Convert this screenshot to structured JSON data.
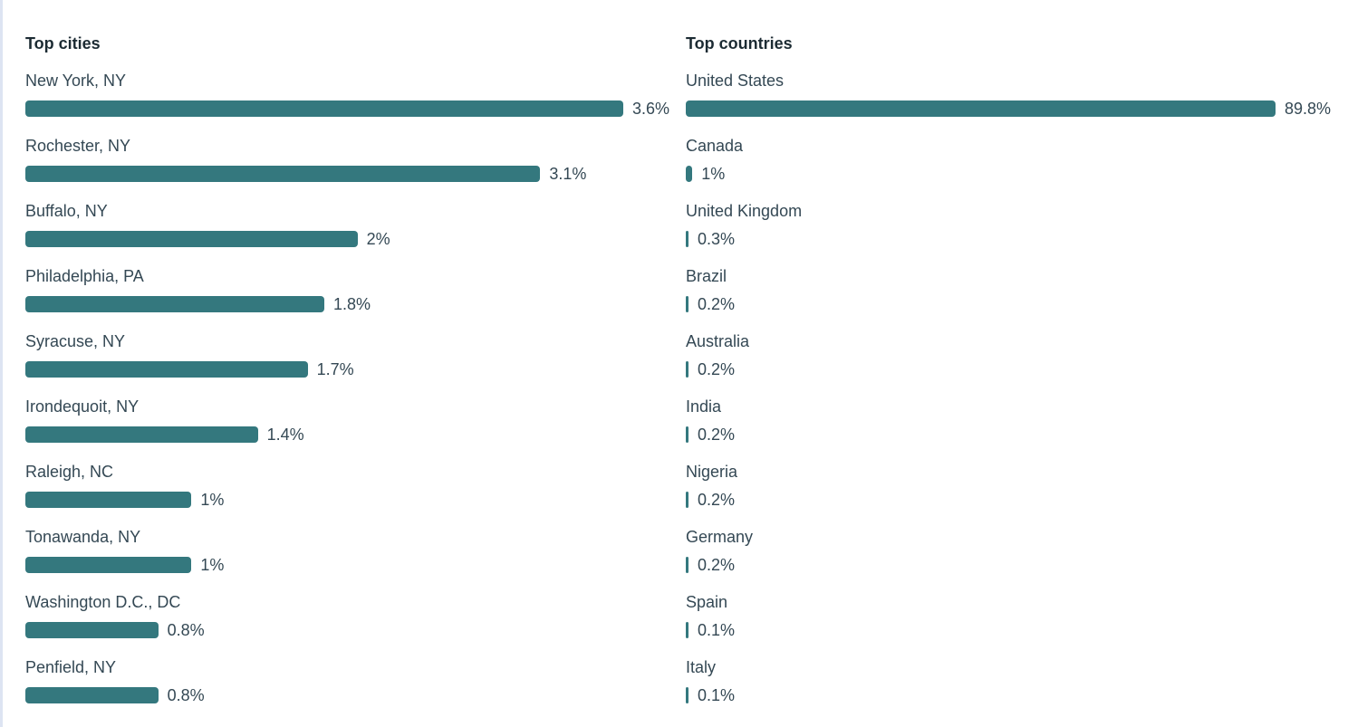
{
  "colors": {
    "bar": "#34787e",
    "heading": "#1c2b33",
    "text": "#344854",
    "edge_strip": "#dde4f2"
  },
  "panels": [
    {
      "header": "Top cities",
      "items": [
        {
          "label": "New York, NY",
          "value": 3.6,
          "value_label": "3.6%"
        },
        {
          "label": "Rochester, NY",
          "value": 3.1,
          "value_label": "3.1%"
        },
        {
          "label": "Buffalo, NY",
          "value": 2,
          "value_label": "2%"
        },
        {
          "label": "Philadelphia, PA",
          "value": 1.8,
          "value_label": "1.8%"
        },
        {
          "label": "Syracuse, NY",
          "value": 1.7,
          "value_label": "1.7%"
        },
        {
          "label": "Irondequoit, NY",
          "value": 1.4,
          "value_label": "1.4%"
        },
        {
          "label": "Raleigh, NC",
          "value": 1,
          "value_label": "1%"
        },
        {
          "label": "Tonawanda, NY",
          "value": 1,
          "value_label": "1%"
        },
        {
          "label": "Washington D.C., DC",
          "value": 0.8,
          "value_label": "0.8%"
        },
        {
          "label": "Penfield, NY",
          "value": 0.8,
          "value_label": "0.8%"
        }
      ]
    },
    {
      "header": "Top countries",
      "items": [
        {
          "label": "United States",
          "value": 89.8,
          "value_label": "89.8%"
        },
        {
          "label": "Canada",
          "value": 1,
          "value_label": "1%"
        },
        {
          "label": "United Kingdom",
          "value": 0.3,
          "value_label": "0.3%"
        },
        {
          "label": "Brazil",
          "value": 0.2,
          "value_label": "0.2%"
        },
        {
          "label": "Australia",
          "value": 0.2,
          "value_label": "0.2%"
        },
        {
          "label": "India",
          "value": 0.2,
          "value_label": "0.2%"
        },
        {
          "label": "Nigeria",
          "value": 0.2,
          "value_label": "0.2%"
        },
        {
          "label": "Germany",
          "value": 0.2,
          "value_label": "0.2%"
        },
        {
          "label": "Spain",
          "value": 0.1,
          "value_label": "0.1%"
        },
        {
          "label": "Italy",
          "value": 0.1,
          "value_label": "0.1%"
        }
      ]
    }
  ],
  "chart_data": [
    {
      "type": "bar",
      "orientation": "horizontal",
      "title": "Top cities",
      "categories": [
        "New York, NY",
        "Rochester, NY",
        "Buffalo, NY",
        "Philadelphia, PA",
        "Syracuse, NY",
        "Irondequoit, NY",
        "Raleigh, NC",
        "Tonawanda, NY",
        "Washington D.C., DC",
        "Penfield, NY"
      ],
      "values": [
        3.6,
        3.1,
        2,
        1.8,
        1.7,
        1.4,
        1,
        1,
        0.8,
        0.8
      ],
      "value_labels": [
        "3.6%",
        "3.1%",
        "2%",
        "1.8%",
        "1.7%",
        "1.4%",
        "1%",
        "1%",
        "0.8%",
        "0.8%"
      ],
      "unit": "%",
      "xlabel": "",
      "ylabel": "",
      "axis": "none",
      "grid": false,
      "legend": false,
      "bars_scaled_to_max": true
    },
    {
      "type": "bar",
      "orientation": "horizontal",
      "title": "Top countries",
      "categories": [
        "United States",
        "Canada",
        "United Kingdom",
        "Brazil",
        "Australia",
        "India",
        "Nigeria",
        "Germany",
        "Spain",
        "Italy"
      ],
      "values": [
        89.8,
        1,
        0.3,
        0.2,
        0.2,
        0.2,
        0.2,
        0.2,
        0.1,
        0.1
      ],
      "value_labels": [
        "89.8%",
        "1%",
        "0.3%",
        "0.2%",
        "0.2%",
        "0.2%",
        "0.2%",
        "0.2%",
        "0.1%",
        "0.1%"
      ],
      "unit": "%",
      "xlabel": "",
      "ylabel": "",
      "axis": "none",
      "grid": false,
      "legend": false,
      "bars_scaled_to_max": true
    }
  ]
}
